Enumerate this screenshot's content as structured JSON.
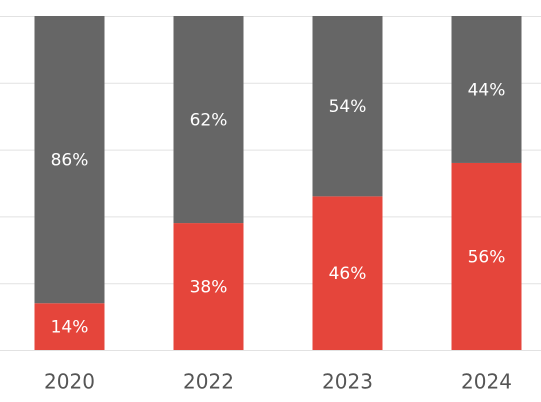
{
  "chart_data": {
    "type": "stacked_bar",
    "categories": [
      "2020",
      "2022",
      "2023",
      "2024"
    ],
    "series": [
      {
        "color": "#e5453b",
        "values": [
          14,
          38,
          46,
          56
        ],
        "value_labels": [
          "14%",
          "38%",
          "46%",
          "56%"
        ]
      },
      {
        "color": "#666666",
        "values": [
          86,
          62,
          54,
          44
        ],
        "value_labels": [
          "86%",
          "62%",
          "54%",
          "44%"
        ]
      }
    ],
    "ylim": [
      0,
      100
    ],
    "yticks": [
      0,
      20,
      40,
      60,
      80,
      100
    ],
    "grid": true
  }
}
